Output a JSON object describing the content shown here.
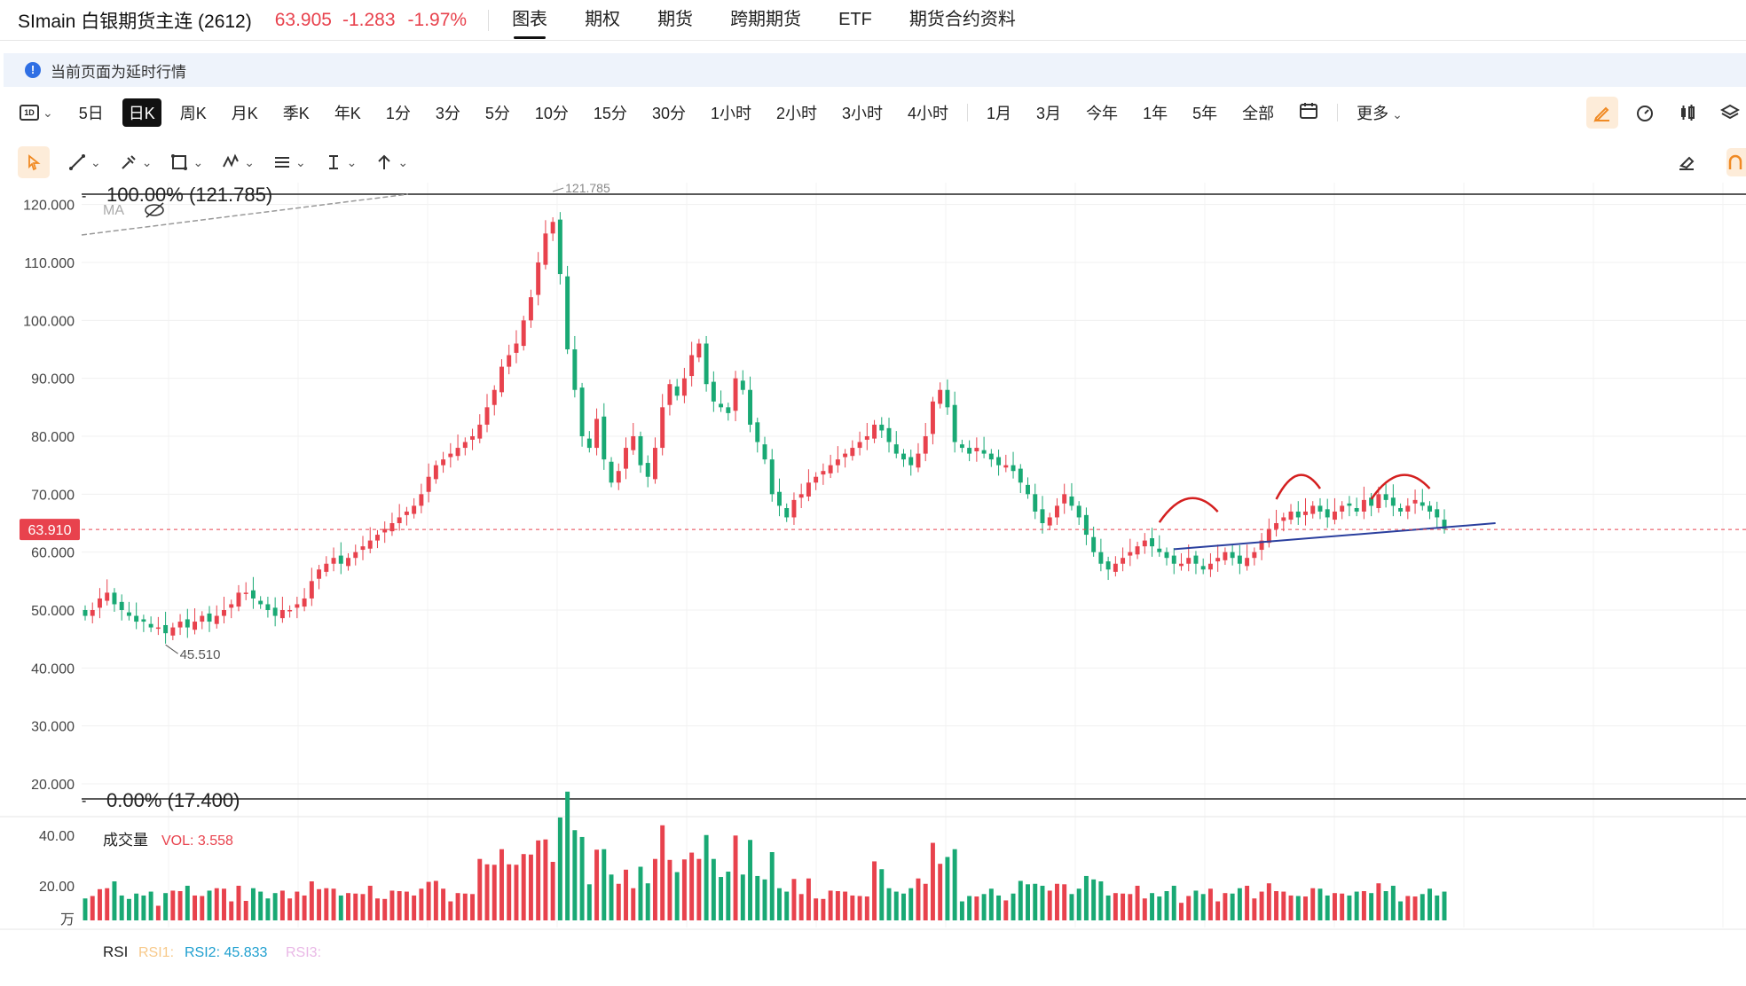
{
  "header": {
    "symbol": "SImain 白银期货主连 (2612)",
    "price": "63.905",
    "change": "-1.283",
    "change_pct": "-1.97%",
    "tabs": [
      {
        "label": "图表",
        "active": true
      },
      {
        "label": "期权"
      },
      {
        "label": "期货"
      },
      {
        "label": "跨期期货"
      },
      {
        "label": "ETF"
      },
      {
        "label": "期货合约资料"
      }
    ]
  },
  "notice": {
    "icon": "info-icon",
    "text": "当前页面为延时行情"
  },
  "period_selector": {
    "icon_label": "1D"
  },
  "periods": [
    {
      "label": "5日"
    },
    {
      "label": "日K",
      "active": true
    },
    {
      "label": "周K"
    },
    {
      "label": "月K"
    },
    {
      "label": "季K"
    },
    {
      "label": "年K"
    },
    {
      "label": "1分"
    },
    {
      "label": "3分"
    },
    {
      "label": "5分"
    },
    {
      "label": "10分"
    },
    {
      "label": "15分"
    },
    {
      "label": "30分"
    },
    {
      "label": "1小时"
    },
    {
      "label": "2小时"
    },
    {
      "label": "3小时"
    },
    {
      "label": "4小时"
    },
    {
      "label": "1月"
    },
    {
      "label": "3月"
    },
    {
      "label": "今年"
    },
    {
      "label": "1年"
    },
    {
      "label": "5年"
    },
    {
      "label": "全部"
    }
  ],
  "more_label": "更多",
  "colors": {
    "up": "#e8424d",
    "down": "#19a974",
    "accent": "#f08a24",
    "trend": "#2a3f9e"
  },
  "chart_data": {
    "type": "candlestick",
    "main": {
      "y_ticks": [
        "120.000",
        "110.000",
        "100.000",
        "90.000",
        "80.000",
        "70.000",
        "60.000",
        "50.000",
        "40.000",
        "30.000",
        "20.000"
      ],
      "ylim": [
        17.4,
        121.785
      ],
      "last_price_label": "63.910",
      "last_price": 63.91,
      "high_label": "121.785",
      "low_label": "45.510",
      "fib_top": "100.00% (121.785)",
      "fib_bottom": "0.00% (17.400)",
      "ma_label": "MA",
      "close_series": [
        49,
        50,
        52,
        53,
        51,
        50,
        49,
        48,
        48,
        47,
        47,
        46,
        47,
        48,
        47,
        48,
        49,
        48,
        49,
        50,
        51,
        53,
        53,
        52,
        51,
        50,
        49,
        50,
        50,
        51,
        52,
        55,
        57,
        58,
        59,
        58,
        59,
        60,
        61,
        62,
        63,
        64,
        65,
        66,
        67,
        68,
        70,
        73,
        75,
        76,
        77,
        78,
        79,
        80,
        82,
        85,
        88,
        92,
        94,
        96,
        100,
        104,
        110,
        115,
        117,
        108,
        95,
        88,
        80,
        78,
        83,
        76,
        72,
        74,
        78,
        80,
        75,
        73,
        78,
        85,
        89,
        87,
        90,
        94,
        96,
        89,
        86,
        85,
        84,
        90,
        88,
        82,
        79,
        76,
        70,
        68,
        66,
        69,
        70,
        72,
        73,
        74,
        75,
        76,
        77,
        78,
        79,
        80,
        82,
        81,
        79,
        77,
        76,
        75,
        77,
        80,
        86,
        88,
        85,
        79,
        78,
        77,
        78,
        77,
        76,
        75,
        75,
        74,
        72,
        70,
        67,
        65,
        66,
        68,
        70,
        68,
        66,
        63,
        60,
        58,
        57,
        58,
        59,
        60,
        61,
        62,
        61,
        60,
        59,
        58,
        58,
        59,
        58,
        57,
        58,
        59,
        60,
        59,
        58,
        59,
        60,
        62,
        64,
        65,
        66,
        67,
        66,
        67,
        68,
        67,
        66,
        67,
        68,
        68,
        67,
        69,
        68,
        70,
        69,
        68,
        67,
        68,
        69,
        68,
        67,
        66,
        64
      ]
    },
    "volume": {
      "label": "成交量",
      "vol_text": "VOL: 3.558",
      "y_ticks": [
        "40.00",
        "20.00"
      ],
      "unit": "万",
      "ylim": [
        0,
        40
      ]
    },
    "rsi": {
      "label": "RSI",
      "rsi1": "RSI1:",
      "rsi2": "RSI2: 45.833",
      "rsi3": "RSI3:"
    }
  }
}
